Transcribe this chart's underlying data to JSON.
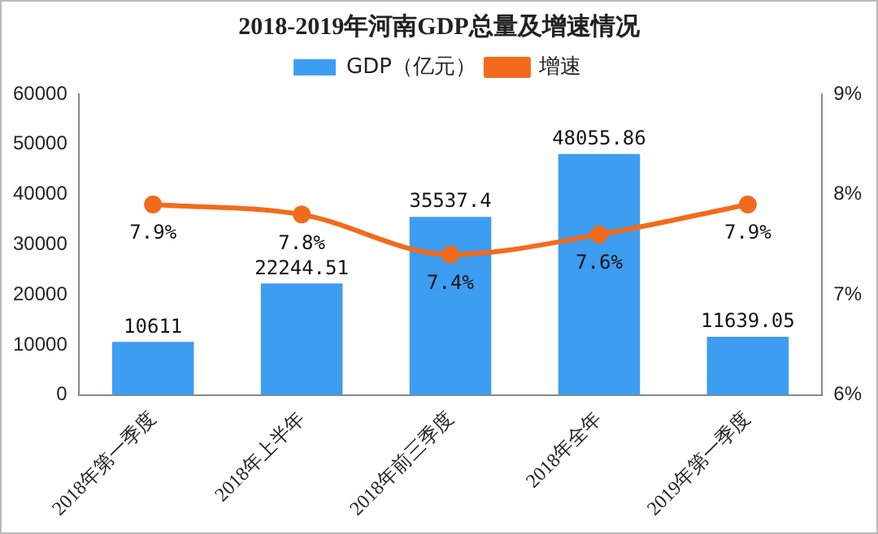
{
  "chart_data": {
    "type": "bar",
    "title": "2018-2019年河南GDP总量及增速情况",
    "categories": [
      "2018年第一季度",
      "2018年上半年",
      "2018年前三季度",
      "2018年全年",
      "2019年第一季度"
    ],
    "series": [
      {
        "name": "GDP（亿元）",
        "color": "#3d9df0",
        "values": [
          10611,
          22244.51,
          35537.4,
          48055.86,
          11639.05
        ],
        "value_labels": [
          "10611",
          "22244.51",
          "35537.4",
          "48055.86",
          "11639.05"
        ]
      },
      {
        "name": "增速",
        "type": "line",
        "axis": "y2",
        "color": "#f26b1d",
        "marker": "circle",
        "values": [
          7.9,
          7.8,
          7.4,
          7.6,
          7.9
        ],
        "value_labels": [
          "7.9%",
          "7.8%",
          "7.4%",
          "7.6%",
          "7.9%"
        ]
      }
    ],
    "ylim": [
      0,
      60000
    ],
    "yticks": [
      0,
      10000,
      20000,
      30000,
      40000,
      50000,
      60000
    ],
    "y2lim": [
      6,
      9
    ],
    "y2ticks": [
      {
        "value": 6,
        "label": "6%"
      },
      {
        "value": 7,
        "label": "7%"
      },
      {
        "value": 8,
        "label": "8%"
      },
      {
        "value": 9,
        "label": "9%"
      }
    ],
    "grid": false,
    "legend": "top"
  }
}
